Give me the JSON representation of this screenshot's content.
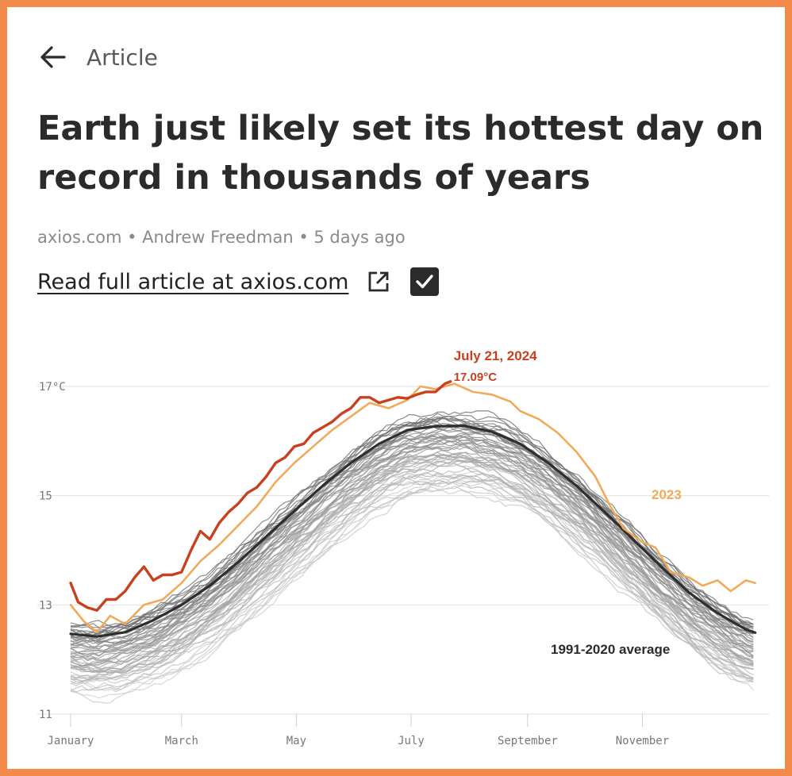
{
  "header": {
    "back_label": "Article"
  },
  "article": {
    "title": "Earth just likely set its hottest day on record in thousands of years",
    "meta": "axios.com • Andrew Freedman • 5 days ago",
    "read_link": "Read full article at axios.com"
  },
  "colors": {
    "frame": "#f48a4a",
    "series_2024": "#c8401e",
    "series_2023": "#f0ab5a",
    "average": "#2e2e2e",
    "historical": "#9a9a9a"
  },
  "icons": {
    "back": "arrow-left-icon",
    "external": "external-link-icon",
    "check": "checkmark-icon"
  },
  "chart_data": {
    "type": "line",
    "title": "",
    "xlabel": "",
    "ylabel": "",
    "y_unit": "°C",
    "ylim": [
      11,
      17.2
    ],
    "yticks": [
      {
        "value": 11,
        "label": "11"
      },
      {
        "value": 13,
        "label": "13"
      },
      {
        "value": 15,
        "label": "15"
      },
      {
        "value": 17,
        "label": "17°C"
      }
    ],
    "xlim": [
      1,
      366
    ],
    "xticks": [
      {
        "label": "January",
        "day": 1
      },
      {
        "label": "March",
        "day": 60
      },
      {
        "label": "May",
        "day": 121
      },
      {
        "label": "July",
        "day": 182
      },
      {
        "label": "September",
        "day": 244
      },
      {
        "label": "November",
        "day": 305
      }
    ],
    "grid": true,
    "series": [
      {
        "name": "1991-2020 average",
        "days": [
          1,
          15,
          30,
          45,
          60,
          75,
          90,
          105,
          120,
          135,
          150,
          165,
          180,
          195,
          210,
          225,
          240,
          255,
          270,
          285,
          300,
          315,
          330,
          345,
          360,
          365
        ],
        "values": [
          12.47,
          12.42,
          12.5,
          12.72,
          13.0,
          13.35,
          13.78,
          14.25,
          14.72,
          15.18,
          15.6,
          15.95,
          16.2,
          16.27,
          16.28,
          16.17,
          15.95,
          15.6,
          15.18,
          14.7,
          14.2,
          13.7,
          13.22,
          12.85,
          12.55,
          12.49
        ]
      },
      {
        "name": "2023",
        "days": [
          1,
          8,
          15,
          22,
          30,
          40,
          50,
          60,
          70,
          80,
          90,
          100,
          110,
          120,
          130,
          140,
          150,
          160,
          170,
          180,
          187,
          195,
          205,
          215,
          225,
          235,
          240,
          250,
          260,
          270,
          280,
          288,
          295,
          305,
          312,
          320,
          330,
          337,
          345,
          352,
          360,
          365
        ],
        "values": [
          13.0,
          12.7,
          12.5,
          12.8,
          12.65,
          13.0,
          13.1,
          13.4,
          13.8,
          14.1,
          14.45,
          14.8,
          15.25,
          15.6,
          15.9,
          16.2,
          16.45,
          16.7,
          16.6,
          16.75,
          17.0,
          16.95,
          17.05,
          16.9,
          16.85,
          16.72,
          16.55,
          16.4,
          16.15,
          15.8,
          15.35,
          14.8,
          14.4,
          14.15,
          14.05,
          13.6,
          13.5,
          13.35,
          13.45,
          13.25,
          13.45,
          13.4
        ]
      },
      {
        "name": "",
        "days": [
          1,
          5,
          10,
          15,
          20,
          25,
          30,
          35,
          40,
          45,
          50,
          55,
          60,
          65,
          70,
          75,
          80,
          85,
          90,
          95,
          100,
          105,
          110,
          115,
          120,
          125,
          130,
          135,
          140,
          145,
          150,
          155,
          160,
          165,
          170,
          175,
          180,
          185,
          190,
          195,
          200,
          203
        ],
        "values": [
          13.4,
          13.05,
          12.95,
          12.9,
          13.1,
          13.1,
          13.25,
          13.5,
          13.7,
          13.45,
          13.55,
          13.55,
          13.6,
          14.0,
          14.35,
          14.2,
          14.5,
          14.7,
          14.85,
          15.05,
          15.15,
          15.35,
          15.6,
          15.7,
          15.9,
          15.95,
          16.15,
          16.25,
          16.35,
          16.5,
          16.6,
          16.8,
          16.8,
          16.7,
          16.75,
          16.8,
          16.78,
          16.85,
          16.9,
          16.9,
          17.05,
          17.09
        ]
      }
    ],
    "historical_lines": "gray band of individual years",
    "annotations": [
      {
        "text": "July 21, 2024",
        "series": "2024"
      },
      {
        "text": "17.09°C",
        "series": "2024"
      },
      {
        "text": "2023",
        "series": "2023"
      },
      {
        "text": "1991-2020 average",
        "series": "average"
      }
    ]
  }
}
